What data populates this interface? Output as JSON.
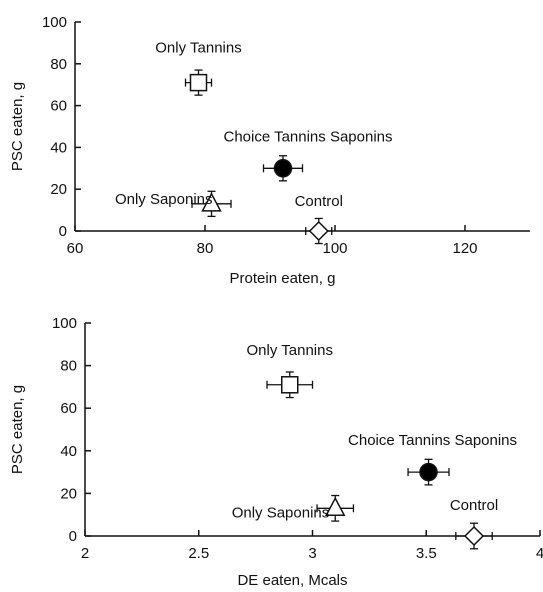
{
  "chart_data": [
    {
      "type": "scatter",
      "xlabel": "Protein eaten, g",
      "ylabel": "PSC eaten, g",
      "xlim": [
        60,
        130
      ],
      "ylim": [
        0,
        100
      ],
      "xticks": [
        "60",
        "80",
        "100",
        "120"
      ],
      "yticks": [
        "0",
        "20",
        "40",
        "60",
        "80",
        "100"
      ],
      "points": [
        {
          "label": "Only Tannins",
          "marker": "square",
          "filled": false,
          "x": 79,
          "y": 71,
          "xerr": 2,
          "yerr": 6
        },
        {
          "label": "Choice Tannins Saponins",
          "marker": "circle",
          "filled": true,
          "x": 92,
          "y": 30,
          "xerr": 3,
          "yerr": 6
        },
        {
          "label": "Only Saponins",
          "marker": "triangle",
          "filled": false,
          "x": 81,
          "y": 13,
          "xerr": 3,
          "yerr": 6
        },
        {
          "label": "Control",
          "marker": "diamond",
          "filled": false,
          "x": 97.5,
          "y": 0,
          "xerr": 2,
          "yerr": 6
        }
      ]
    },
    {
      "type": "scatter",
      "xlabel": "DE eaten, Mcals",
      "ylabel": "PSC eaten, g",
      "xlim": [
        2,
        4
      ],
      "ylim": [
        0,
        100
      ],
      "xticks": [
        "2",
        "2.5",
        "3",
        "3.5",
        "4"
      ],
      "yticks": [
        "0",
        "20",
        "40",
        "60",
        "80",
        "100"
      ],
      "points": [
        {
          "label": "Only Tannins",
          "marker": "square",
          "filled": false,
          "x": 2.9,
          "y": 71,
          "xerr": 0.1,
          "yerr": 6
        },
        {
          "label": "Choice Tannins Saponins",
          "marker": "circle",
          "filled": true,
          "x": 3.51,
          "y": 30,
          "xerr": 0.09,
          "yerr": 6
        },
        {
          "label": "Only Saponins",
          "marker": "triangle",
          "filled": false,
          "x": 3.1,
          "y": 13,
          "xerr": 0.08,
          "yerr": 6
        },
        {
          "label": "Control",
          "marker": "diamond",
          "filled": false,
          "x": 3.71,
          "y": 0,
          "xerr": 0.08,
          "yerr": 6
        }
      ]
    }
  ]
}
